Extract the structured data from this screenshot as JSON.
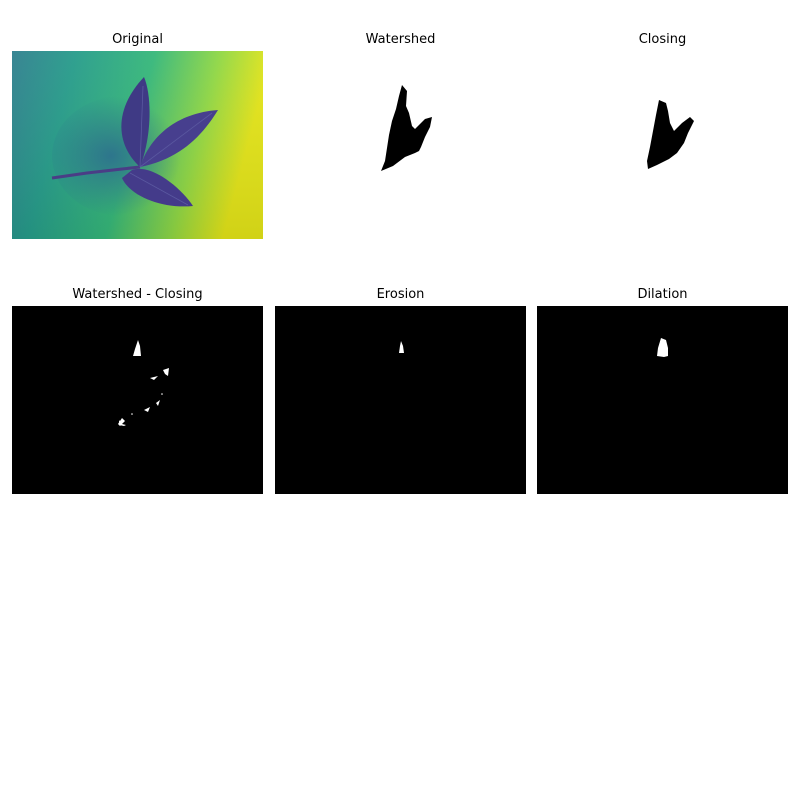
{
  "panels": [
    {
      "title": "Original",
      "image": "original-leaf-image",
      "colormap": "viridis",
      "colors": {
        "low": "#3b2a7a",
        "mid": "#2aa98a",
        "high": "#e6e419"
      }
    },
    {
      "title": "Watershed",
      "image": "watershed-mask-image",
      "colors": {
        "background": "#ffffff",
        "foreground": "#000000"
      }
    },
    {
      "title": "Closing",
      "image": "closing-mask-image",
      "colors": {
        "background": "#ffffff",
        "foreground": "#000000"
      }
    },
    {
      "title": "Watershed - Closing",
      "image": "difference-mask-image",
      "colors": {
        "background": "#000000",
        "foreground": "#ffffff"
      }
    },
    {
      "title": "Erosion",
      "image": "erosion-mask-image",
      "colors": {
        "background": "#000000",
        "foreground": "#ffffff"
      }
    },
    {
      "title": "Dilation",
      "image": "dilation-mask-image",
      "colors": {
        "background": "#000000",
        "foreground": "#ffffff"
      }
    }
  ]
}
